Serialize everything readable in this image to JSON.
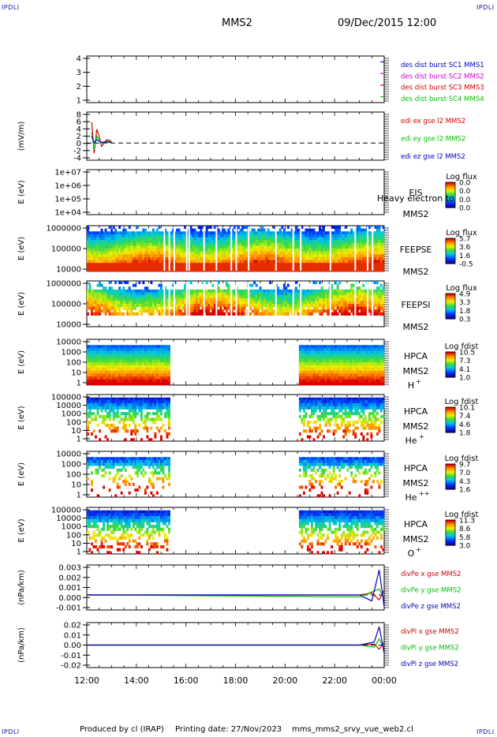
{
  "header": {
    "mission": "MMS2",
    "date": "09/Dec/2015 12:00",
    "corner_left_top": "IPDLI",
    "corner_right_top": "IPDLI",
    "corner_left_bottom": "IPDLI",
    "corner_right_bottom": "IPDLI"
  },
  "footer": {
    "credit": "Produced by cl (IRAP)",
    "printing": "Printing date: 27/Nov/2023",
    "file": "mms_mms2_srvy_vue_web2.cl"
  },
  "colors": {
    "red": "#d00000",
    "green": "#00c000",
    "blue": "#0000c0",
    "magenta": "#d000d0"
  },
  "chart_data": [
    {
      "type": "line",
      "panel": "burst",
      "ylabel": "",
      "yticks": [
        "1",
        "2",
        "3",
        "4"
      ],
      "ylim": [
        0.5,
        4.5
      ],
      "xlim": [
        12,
        24
      ],
      "series": [
        {
          "name": "des dist burst SC1 MMS1",
          "color": "#0000c0",
          "x": [
            23.85,
            24.0
          ],
          "values": [
            4,
            4
          ]
        },
        {
          "name": "des dist burst SC2 MMS2",
          "color": "#d000d0",
          "x": [
            23.85,
            24.0
          ],
          "values": [
            3,
            3
          ]
        },
        {
          "name": "des dist burst SC3 MMS3",
          "color": "#d00000",
          "x": [
            23.85,
            24.0
          ],
          "values": [
            2,
            2
          ]
        },
        {
          "name": "des dist burst SC4 MMS4",
          "color": "#00c000",
          "x": [
            23.85,
            24.0
          ],
          "values": [
            1,
            1
          ]
        }
      ]
    },
    {
      "type": "line",
      "panel": "edi",
      "ylabel": "(mV/m)",
      "yticks": [
        "-4",
        "-2",
        "0",
        "2",
        "4",
        "6",
        "8"
      ],
      "ylim": [
        -5,
        9
      ],
      "xlim": [
        12,
        24
      ],
      "zero_line": true,
      "series": [
        {
          "name": "edi ex gse l2 MMS2",
          "color": "#d00000",
          "x": [
            12.2,
            12.3,
            12.4,
            12.5,
            12.6,
            12.8,
            13.0
          ],
          "values": [
            6,
            -3,
            4,
            2,
            -1,
            1,
            0.5
          ]
        },
        {
          "name": "edi ey gse l2 MMS2",
          "color": "#00c000",
          "x": [
            12.2,
            12.3,
            12.4,
            12.5,
            12.6,
            12.8,
            13.0
          ],
          "values": [
            3,
            -2,
            2,
            1,
            0,
            0.5,
            0.3
          ]
        },
        {
          "name": "edi ez gse l2 MMS2",
          "color": "#0000c0",
          "x": [
            12.2,
            12.3,
            12.4,
            12.5,
            12.6,
            12.8,
            13.0
          ],
          "values": [
            2,
            0,
            1,
            0.5,
            0.2,
            0.3,
            0.1
          ]
        }
      ]
    },
    {
      "type": "heatmap",
      "panel": "eis",
      "ylabel": "E (eV)",
      "yticks": [
        "1e+04",
        "1e+05",
        "1e+06",
        "1e+07"
      ],
      "labels": [
        "EIS",
        "Heavy electron to",
        "MMS2"
      ],
      "colorbar": {
        "title": "Log flux",
        "ticks": [
          "0.0",
          "0.0",
          "0.0",
          "0.0"
        ]
      }
    },
    {
      "type": "heatmap",
      "panel": "feepse",
      "ylabel": "E (eV)",
      "yticks": [
        "10000",
        "100000",
        "1000000"
      ],
      "labels": [
        "FEEPSE",
        "MMS2"
      ],
      "colorbar": {
        "title": "Log flux",
        "ticks": [
          "5.7",
          "3.6",
          "1.6",
          "-0.5"
        ]
      },
      "coverage": [
        [
          12.0,
          24.0
        ]
      ]
    },
    {
      "type": "heatmap",
      "panel": "feepsi",
      "ylabel": "E (eV)",
      "yticks": [
        "10000",
        "100000",
        "1000000"
      ],
      "labels": [
        "FEEPSI",
        "MMS2"
      ],
      "colorbar": {
        "title": "Log flux",
        "ticks": [
          "4.9",
          "3.3",
          "1.8",
          "0.3"
        ]
      },
      "coverage": [
        [
          12.0,
          24.0
        ]
      ]
    },
    {
      "type": "heatmap",
      "panel": "hpca_h",
      "ylabel": "E (eV)",
      "yticks": [
        "1",
        "10",
        "100",
        "1000",
        "10000"
      ],
      "labels": [
        "HPCA",
        "MMS2"
      ],
      "species": "H",
      "species_sup": "+",
      "colorbar": {
        "title": "Log fdist",
        "ticks": [
          "10.5",
          "7.3",
          "4.1",
          "1.0"
        ]
      },
      "coverage": [
        [
          12.0,
          15.35
        ],
        [
          20.55,
          24.0
        ]
      ]
    },
    {
      "type": "heatmap",
      "panel": "hpca_he",
      "ylabel": "E (eV)",
      "yticks": [
        "1",
        "10",
        "100",
        "1000",
        "10000",
        "100000"
      ],
      "labels": [
        "HPCA",
        "MMS2"
      ],
      "species": "He",
      "species_sup": "+",
      "colorbar": {
        "title": "Log fdist",
        "ticks": [
          "10.1",
          "7.4",
          "4.6",
          "1.8"
        ]
      },
      "coverage": [
        [
          12.0,
          15.35
        ],
        [
          20.55,
          24.0
        ]
      ]
    },
    {
      "type": "heatmap",
      "panel": "hpca_hepp",
      "ylabel": "E (eV)",
      "yticks": [
        "1",
        "10",
        "100",
        "1000",
        "10000"
      ],
      "labels": [
        "HPCA",
        "MMS2"
      ],
      "species": "He",
      "species_sup": "++",
      "colorbar": {
        "title": "Log fdist",
        "ticks": [
          "9.7",
          "7.0",
          "4.3",
          "1.6"
        ]
      },
      "coverage": [
        [
          12.0,
          15.35
        ],
        [
          20.55,
          24.0
        ]
      ]
    },
    {
      "type": "heatmap",
      "panel": "hpca_o",
      "ylabel": "E (eV)",
      "yticks": [
        "1",
        "10",
        "100",
        "1000",
        "10000",
        "100000"
      ],
      "labels": [
        "HPCA",
        "MMS2"
      ],
      "species": "O",
      "species_sup": "+",
      "colorbar": {
        "title": "Log fdist",
        "ticks": [
          "11.3",
          "8.6",
          "5.8",
          "3.0"
        ]
      },
      "coverage": [
        [
          12.0,
          15.35
        ],
        [
          20.55,
          24.0
        ]
      ]
    },
    {
      "type": "line",
      "panel": "divpe",
      "ylabel": "(nPa/km)",
      "yticks": [
        "-0.001",
        "0.000",
        "0.001",
        "0.002",
        "0.003"
      ],
      "ylim": [
        -0.0015,
        0.003
      ],
      "xlim": [
        12,
        24
      ],
      "zero_line": true,
      "series": [
        {
          "name": "divPe x gse MMS2",
          "color": "#d00000",
          "x": [
            12.0,
            13.2,
            23.0,
            23.5,
            23.8,
            24.0
          ],
          "values": [
            0.0,
            0.0,
            0.0,
            0.0002,
            -0.0005,
            0.0005
          ]
        },
        {
          "name": "divPe y gse MMS2",
          "color": "#00c000",
          "x": [
            12.0,
            13.2,
            23.0,
            23.5,
            23.8,
            24.0
          ],
          "values": [
            0.0,
            0.0,
            -0.0002,
            0.0003,
            0.0006,
            -0.0004
          ]
        },
        {
          "name": "divPe z gse MMS2",
          "color": "#0000c0",
          "x": [
            12.0,
            13.2,
            23.0,
            23.5,
            23.8,
            24.0
          ],
          "values": [
            0.0,
            0.0,
            0.0,
            -0.0006,
            0.0025,
            -0.0012
          ]
        }
      ]
    },
    {
      "type": "line",
      "panel": "divpi",
      "ylabel": "(nPa/km)",
      "yticks": [
        "-0.02",
        "-0.01",
        "0.00",
        "0.01",
        "0.02"
      ],
      "ylim": [
        -0.022,
        0.022
      ],
      "xlim": [
        12,
        24
      ],
      "zero_line": true,
      "xticks": [
        "12:00",
        "14:00",
        "16:00",
        "18:00",
        "20:00",
        "22:00",
        "00:00"
      ],
      "series": [
        {
          "name": "divPi x gse MMS2",
          "color": "#d00000",
          "x": [
            12.0,
            13.2,
            23.0,
            23.6,
            23.8,
            24.0
          ],
          "values": [
            0.0,
            0.0,
            0.0,
            0.001,
            -0.004,
            0.003
          ]
        },
        {
          "name": "divPi y gse MMS2",
          "color": "#00c000",
          "x": [
            12.0,
            13.2,
            23.0,
            23.6,
            23.8,
            24.0
          ],
          "values": [
            0.0,
            0.0,
            0.0,
            -0.002,
            0.006,
            -0.003
          ]
        },
        {
          "name": "divPi z gse MMS2",
          "color": "#0000c0",
          "x": [
            12.0,
            13.2,
            23.0,
            23.6,
            23.8,
            24.0
          ],
          "values": [
            0.0,
            0.0,
            0.0,
            0.003,
            0.018,
            -0.008
          ]
        }
      ]
    }
  ]
}
